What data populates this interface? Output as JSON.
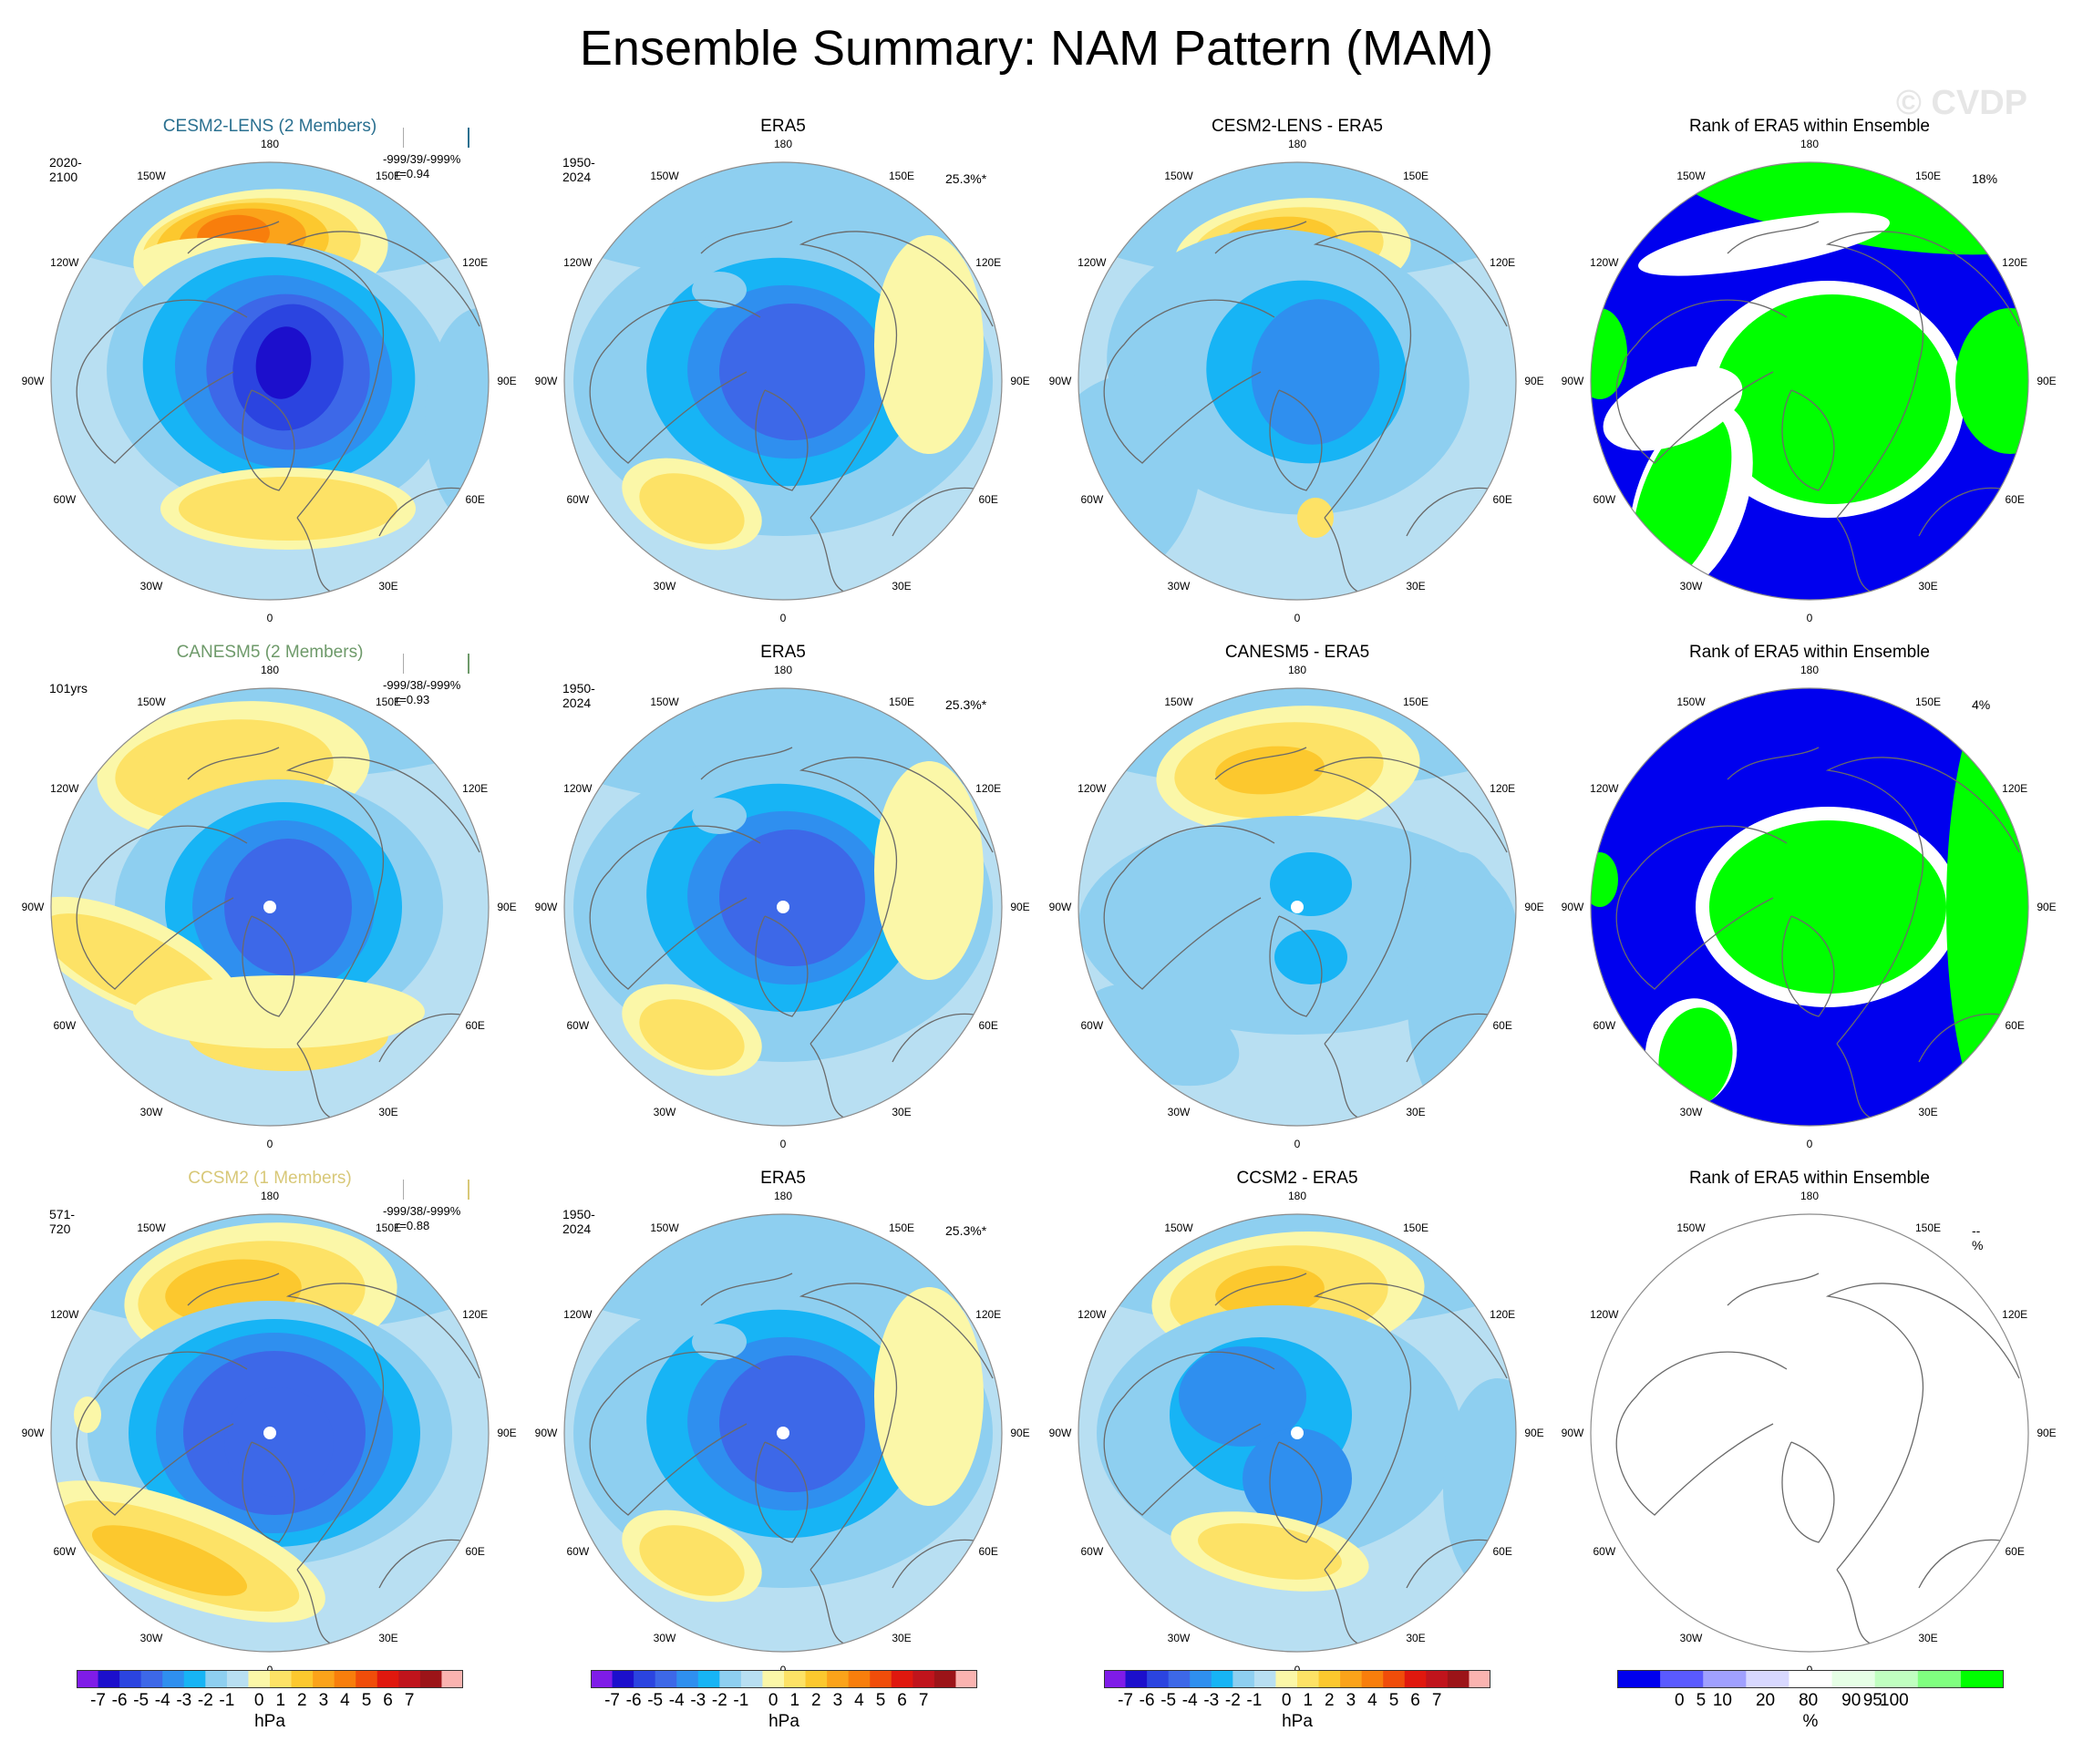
{
  "title": "Ensemble Summary: NAM Pattern (MAM)",
  "watermark": "© CVDP",
  "lon_labels": [
    "180",
    "150E",
    "120E",
    "90E",
    "60E",
    "30E",
    "0",
    "30W",
    "60W",
    "90W",
    "120W",
    "150W"
  ],
  "palettes": {
    "hpa": [
      "#7f1ce8",
      "#1c0fcc",
      "#2b44e0",
      "#3d68e8",
      "#2f8fef",
      "#17b4f5",
      "#8ecff0",
      "#b8dff2",
      "#fbf7a8",
      "#fde266",
      "#fcc82e",
      "#fba31a",
      "#f87e0c",
      "#f04d0a",
      "#e0180e",
      "#c0141c",
      "#9c1418",
      "#fab3b0"
    ],
    "pct": [
      "#0000ee",
      "#5a5aff",
      "#a0a0ff",
      "#d8d8ff",
      "#ffffff",
      "#e6ffe6",
      "#c0ffc0",
      "#80ff80",
      "#00ff00"
    ]
  },
  "colorbars": {
    "hpa": {
      "ticks": [
        "-7",
        "-6",
        "-5",
        "-4",
        "-3",
        "-2",
        "-1",
        "0",
        "1",
        "2",
        "3",
        "4",
        "5",
        "6",
        "7"
      ],
      "unit": "hPa"
    },
    "pct": {
      "ticks": [
        "0",
        "5",
        "10",
        "20",
        "80",
        "90",
        "95",
        "100"
      ],
      "unit": "%"
    }
  },
  "rows": [
    {
      "member": {
        "title": "CESM2-LENS (2 Members)",
        "title_color": "#2a7090",
        "period": "2020-2100",
        "stats_line1": "-999/39/-999%",
        "stats_line2": "r=0.94"
      },
      "obs": {
        "title": "ERA5",
        "period": "1950-2024",
        "pct": "25.3%*"
      },
      "diff": {
        "title": "CESM2-LENS - ERA5"
      },
      "rank": {
        "title": "Rank of ERA5 within Ensemble",
        "pct": "18%"
      }
    },
    {
      "member": {
        "title": "CANESM5 (2 Members)",
        "title_color": "#6e9a6a",
        "period": "101yrs",
        "stats_line1": "-999/38/-999%",
        "stats_line2": "r=0.93"
      },
      "obs": {
        "title": "ERA5",
        "period": "1950-2024",
        "pct": "25.3%*"
      },
      "diff": {
        "title": "CANESM5 - ERA5"
      },
      "rank": {
        "title": "Rank of ERA5 within Ensemble",
        "pct": "4%"
      }
    },
    {
      "member": {
        "title": "CCSM2 (1 Members)",
        "title_color": "#d8c878",
        "period": "571-720",
        "stats_line1": "-999/38/-999%",
        "stats_line2": "r=0.88"
      },
      "obs": {
        "title": "ERA5",
        "period": "1950-2024",
        "pct": "25.3%*"
      },
      "diff": {
        "title": "CCSM2 - ERA5"
      },
      "rank": {
        "title": "Rank of ERA5 within Ensemble",
        "pct": "--%"
      }
    }
  ]
}
